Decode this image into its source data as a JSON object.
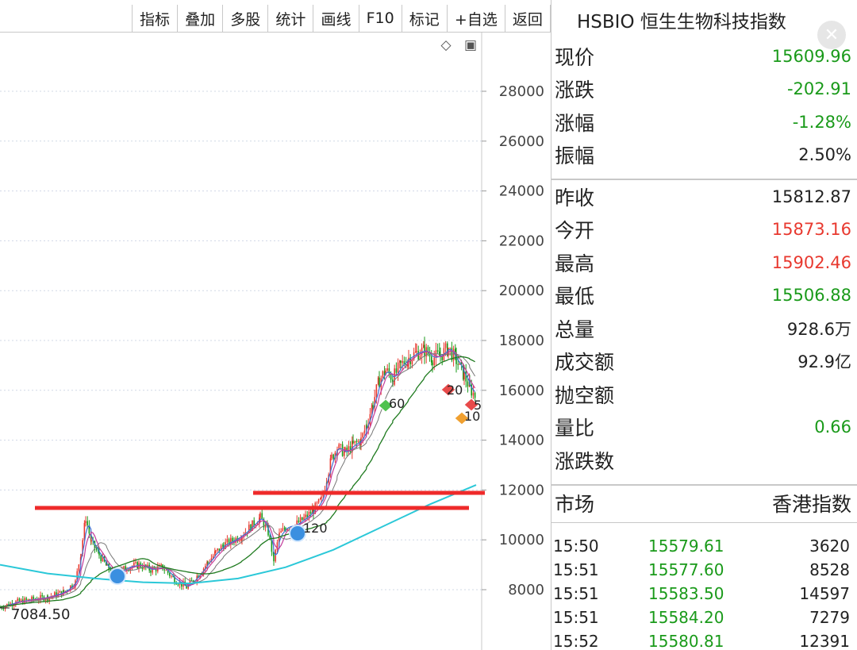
{
  "toolbar": {
    "buttons": [
      "指标",
      "叠加",
      "多股",
      "统计",
      "画线",
      "F10",
      "标记",
      "+自选",
      "返回"
    ]
  },
  "chart": {
    "tools": [
      {
        "icon": "diamond-outline-icon",
        "glyph": "◇"
      },
      {
        "icon": "panel-toggle-icon",
        "glyph": "▣"
      }
    ],
    "y_axis_labels": [
      "28000",
      "26000",
      "24000",
      "22000",
      "20000",
      "18000",
      "16000",
      "14000",
      "12000",
      "10000",
      "8000"
    ],
    "low_label": "7084.50",
    "markers": [
      {
        "label": "60",
        "shape": "green-diamond-marker-icon"
      },
      {
        "label": "20",
        "shape": "red-diamond-marker-icon"
      },
      {
        "label": "10",
        "shape": "orange-diamond-marker-icon"
      },
      {
        "label": "5",
        "shape": "red-diamond-marker-icon"
      },
      {
        "label": "120",
        "shape": "blue-sphere-marker-icon"
      }
    ],
    "colors": {
      "up": "#e8392f",
      "down": "#1a9a1a",
      "ma_short": "#3d6fd6",
      "ma_mid": "#c23b9a",
      "ma_long": "#111111",
      "ma_green": "#1e7a1e",
      "ma_cyan": "#2bc8d8",
      "support_line": "#ee2a2a",
      "grid": "#d0d8e6"
    }
  },
  "panel": {
    "title": "HSBIO 恒生生物科技指数",
    "quote_group1": [
      {
        "label": "现价",
        "value": "15609.96",
        "color": "#1a9a1a"
      },
      {
        "label": "涨跌",
        "value": "-202.91",
        "color": "#1a9a1a"
      },
      {
        "label": "涨幅",
        "value": "-1.28%",
        "color": "#1a9a1a"
      },
      {
        "label": "振幅",
        "value": "2.50%",
        "color": "#222222"
      }
    ],
    "quote_group2": [
      {
        "label": "昨收",
        "value": "15812.87",
        "color": "#222222"
      },
      {
        "label": "今开",
        "value": "15873.16",
        "color": "#e8392f"
      },
      {
        "label": "最高",
        "value": "15902.46",
        "color": "#e8392f"
      },
      {
        "label": "最低",
        "value": "15506.88",
        "color": "#1a9a1a"
      },
      {
        "label": "总量",
        "value": "928.6万",
        "color": "#222222"
      },
      {
        "label": "成交额",
        "value": "92.9亿",
        "color": "#222222"
      },
      {
        "label": "抛空额",
        "value": "",
        "color": "#222222"
      },
      {
        "label": "量比",
        "value": "0.66",
        "color": "#1a9a1a"
      },
      {
        "label": "涨跌数",
        "value": "",
        "color": "#222222"
      }
    ],
    "market": {
      "label": "市场",
      "value": "香港指数"
    },
    "ticks": [
      {
        "time": "15:50",
        "price": "15579.61",
        "volume": "3620"
      },
      {
        "time": "15:51",
        "price": "15577.60",
        "volume": "8528"
      },
      {
        "time": "15:51",
        "price": "15583.50",
        "volume": "14597"
      },
      {
        "time": "15:51",
        "price": "15584.20",
        "volume": "7279"
      },
      {
        "time": "15:52",
        "price": "15580.81",
        "volume": "12391"
      }
    ]
  }
}
